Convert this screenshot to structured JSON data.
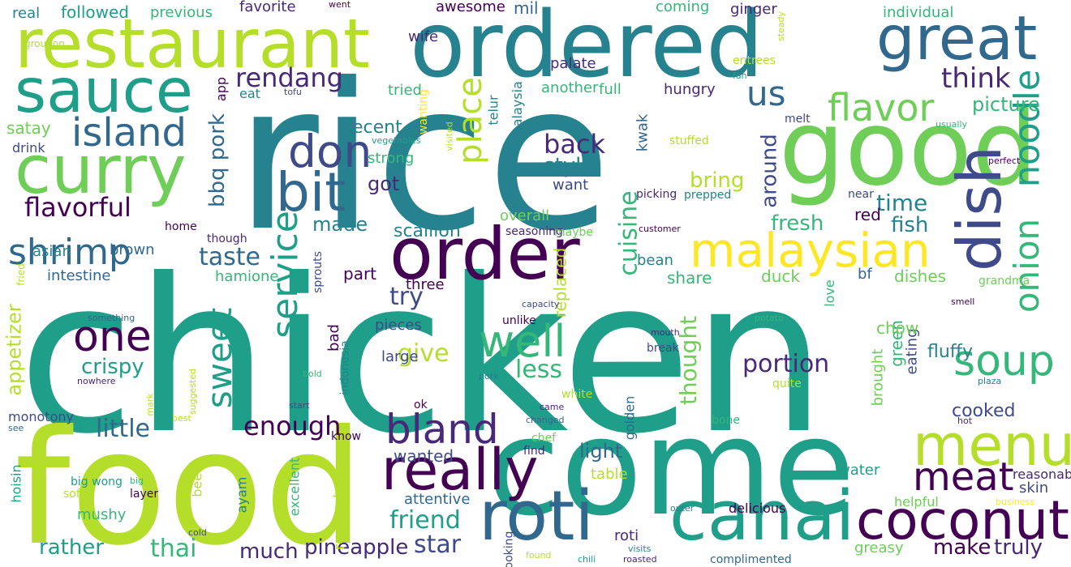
{
  "colors": {
    "background": "#ffffff",
    "palette": [
      "#440154",
      "#482878",
      "#3e4a89",
      "#31688e",
      "#26828e",
      "#1f9e89",
      "#35b779",
      "#6ece58",
      "#b5de2b",
      "#fde725"
    ]
  },
  "words": [
    {
      "text": "chicken",
      "color": "#1f9e89"
    },
    {
      "text": "rice",
      "color": "#26828e"
    },
    {
      "text": "food",
      "color": "#b5de2b"
    },
    {
      "text": "come",
      "color": "#1f9e89"
    },
    {
      "text": "ordered",
      "color": "#26828e"
    },
    {
      "text": "good",
      "color": "#6ece58"
    },
    {
      "text": "restaurant",
      "color": "#b5de2b"
    },
    {
      "text": "curry",
      "color": "#6ece58"
    },
    {
      "text": "sauce",
      "color": "#1f9e89"
    },
    {
      "text": "roti",
      "color": "#31688e"
    },
    {
      "text": "canai",
      "color": "#1f9e89"
    },
    {
      "text": "order",
      "color": "#440154"
    },
    {
      "text": "great",
      "color": "#31688e"
    },
    {
      "text": "dish",
      "color": "#3e4a89"
    },
    {
      "text": "malaysian",
      "color": "#fde725"
    },
    {
      "text": "really",
      "color": "#440154"
    },
    {
      "text": "menu",
      "color": "#b5de2b"
    },
    {
      "text": "coconut",
      "color": "#440154"
    },
    {
      "text": "bit",
      "color": "#31688e"
    },
    {
      "text": "island",
      "color": "#31688e"
    },
    {
      "text": "shrimp",
      "color": "#31688e"
    },
    {
      "text": "one",
      "color": "#440154"
    },
    {
      "text": "well",
      "color": "#35b779"
    },
    {
      "text": "soup",
      "color": "#35b779"
    },
    {
      "text": "noodle",
      "color": "#1f9e89"
    },
    {
      "text": "onion",
      "color": "#35b779"
    },
    {
      "text": "flavor",
      "color": "#6ece58"
    },
    {
      "text": "bland",
      "color": "#482878"
    },
    {
      "text": "meat",
      "color": "#440154"
    },
    {
      "text": "don",
      "color": "#3e4a89"
    },
    {
      "text": "place",
      "color": "#b5de2b"
    },
    {
      "text": "service",
      "color": "#1f9e89"
    },
    {
      "text": "sweet",
      "color": "#1f9e89"
    },
    {
      "text": "us",
      "color": "#31688e"
    },
    {
      "text": "think",
      "color": "#482878"
    },
    {
      "text": "rendang",
      "color": "#482878"
    },
    {
      "text": "back",
      "color": "#482878"
    },
    {
      "text": "style",
      "color": "#26828e"
    },
    {
      "text": "flavorful",
      "color": "#440154"
    },
    {
      "text": "bbq pork",
      "color": "#31688e"
    },
    {
      "text": "enough",
      "color": "#440154"
    },
    {
      "text": "little",
      "color": "#31688e"
    },
    {
      "text": "taste",
      "color": "#31688e"
    },
    {
      "text": "try",
      "color": "#3e4a89"
    },
    {
      "text": "give",
      "color": "#b5de2b"
    },
    {
      "text": "less",
      "color": "#35b779"
    },
    {
      "text": "portion",
      "color": "#482878"
    },
    {
      "text": "friend",
      "color": "#1f9e89"
    },
    {
      "text": "star",
      "color": "#3e4a89"
    },
    {
      "text": "thai",
      "color": "#35b779"
    },
    {
      "text": "rather",
      "color": "#1f9e89"
    },
    {
      "text": "much",
      "color": "#482878"
    },
    {
      "text": "pineapple",
      "color": "#482878"
    },
    {
      "text": "make",
      "color": "#440154"
    },
    {
      "text": "truly",
      "color": "#482878"
    },
    {
      "text": "crispy",
      "color": "#1f9e89"
    },
    {
      "text": "appetizer",
      "color": "#b5de2b"
    },
    {
      "text": "time",
      "color": "#26828e"
    },
    {
      "text": "fish",
      "color": "#26828e"
    },
    {
      "text": "fresh",
      "color": "#35b779"
    },
    {
      "text": "cuisine",
      "color": "#35b779"
    },
    {
      "text": "thought",
      "color": "#6ece58"
    },
    {
      "text": "around",
      "color": "#3e4a89"
    },
    {
      "text": "bring",
      "color": "#b5de2b"
    },
    {
      "text": "decent",
      "color": "#26828e"
    },
    {
      "text": "got",
      "color": "#482878"
    },
    {
      "text": "made",
      "color": "#26828e"
    },
    {
      "text": "scallion",
      "color": "#26828e"
    },
    {
      "text": "satay",
      "color": "#6ece58"
    },
    {
      "text": "drink",
      "color": "#3e4a89"
    },
    {
      "text": "asian",
      "color": "#26828e"
    },
    {
      "text": "brown",
      "color": "#31688e"
    },
    {
      "text": "intestine",
      "color": "#31688e"
    },
    {
      "text": "hamione",
      "color": "#35b779"
    },
    {
      "text": "part",
      "color": "#440154"
    },
    {
      "text": "three",
      "color": "#440154"
    },
    {
      "text": "pieces",
      "color": "#3e4a89"
    },
    {
      "text": "large",
      "color": "#3e4a89"
    },
    {
      "text": "light",
      "color": "#31688e"
    },
    {
      "text": "wanted",
      "color": "#3e4a89"
    },
    {
      "text": "attentive",
      "color": "#31688e"
    },
    {
      "text": "fluffy",
      "color": "#26828e"
    },
    {
      "text": "cooked",
      "color": "#3e4a89"
    },
    {
      "text": "green",
      "color": "#35b779"
    },
    {
      "text": "eating",
      "color": "#3e4a89"
    },
    {
      "text": "dishes",
      "color": "#6ece58"
    },
    {
      "text": "chow",
      "color": "#6ece58"
    },
    {
      "text": "red",
      "color": "#440154"
    },
    {
      "text": "share",
      "color": "#35b779"
    },
    {
      "text": "duck",
      "color": "#6ece58"
    },
    {
      "text": "bean",
      "color": "#26828e"
    },
    {
      "text": "bf",
      "color": "#31688e"
    },
    {
      "text": "water",
      "color": "#1f9e89"
    },
    {
      "text": "skin",
      "color": "#3e4a89"
    },
    {
      "text": "greasy",
      "color": "#6ece58"
    },
    {
      "text": "table",
      "color": "#b5de2b"
    },
    {
      "text": "roti",
      "color": "#482878"
    },
    {
      "text": "helpful",
      "color": "#6ece58"
    },
    {
      "text": "delicious",
      "color": "#440154"
    },
    {
      "text": "reasonable",
      "color": "#482878"
    },
    {
      "text": "overall",
      "color": "#6ece58"
    },
    {
      "text": "want",
      "color": "#3e4a89"
    },
    {
      "text": "strong",
      "color": "#35b779"
    },
    {
      "text": "kwak",
      "color": "#31688e"
    },
    {
      "text": "picking",
      "color": "#482878"
    },
    {
      "text": "telur",
      "color": "#26828e"
    },
    {
      "text": "malaysia",
      "color": "#26828e"
    },
    {
      "text": "another",
      "color": "#35b779"
    },
    {
      "text": "tried",
      "color": "#35b779"
    },
    {
      "text": "palate",
      "color": "#482878"
    },
    {
      "text": "wife",
      "color": "#482878"
    },
    {
      "text": "mil",
      "color": "#31688e"
    },
    {
      "text": "awesome",
      "color": "#440154"
    },
    {
      "text": "coming",
      "color": "#35b779"
    },
    {
      "text": "ginger",
      "color": "#482878"
    },
    {
      "text": "individual",
      "color": "#35b779"
    },
    {
      "text": "picture",
      "color": "#35b779"
    },
    {
      "text": "full",
      "color": "#35b779"
    },
    {
      "text": "hungry",
      "color": "#482878"
    },
    {
      "text": "favorite",
      "color": "#482878"
    },
    {
      "text": "previous",
      "color": "#35b779"
    },
    {
      "text": "followed",
      "color": "#1f9e89"
    },
    {
      "text": "real",
      "color": "#26828e"
    },
    {
      "text": "went",
      "color": "#440154"
    },
    {
      "text": "groupon",
      "color": "#b5de2b"
    },
    {
      "text": "app",
      "color": "#440154"
    },
    {
      "text": "eat",
      "color": "#26828e"
    },
    {
      "text": "tofu",
      "color": "#3e4a89"
    },
    {
      "text": "wanting",
      "color": "#fde725"
    },
    {
      "text": "vegetables",
      "color": "#1f9e89"
    },
    {
      "text": "visited",
      "color": "#b5de2b"
    },
    {
      "text": "entrees",
      "color": "#b5de2b"
    },
    {
      "text": "fan",
      "color": "#1f9e89"
    },
    {
      "text": "steady",
      "color": "#b5de2b"
    },
    {
      "text": "melt",
      "color": "#3e4a89"
    },
    {
      "text": "usually",
      "color": "#35b779"
    },
    {
      "text": "stuffed",
      "color": "#b5de2b"
    },
    {
      "text": "perfect",
      "color": "#440154"
    },
    {
      "text": "near",
      "color": "#3e4a89"
    },
    {
      "text": "prepped",
      "color": "#26828e"
    },
    {
      "text": "home",
      "color": "#440154"
    },
    {
      "text": "though",
      "color": "#482878"
    },
    {
      "text": "seasoning",
      "color": "#482878"
    },
    {
      "text": "maybe",
      "color": "#6ece58"
    },
    {
      "text": "customer",
      "color": "#440154"
    },
    {
      "text": "replaced",
      "color": "#b5de2b"
    },
    {
      "text": "sprouts",
      "color": "#3e4a89"
    },
    {
      "text": "fried",
      "color": "#b5de2b"
    },
    {
      "text": "something",
      "color": "#31688e"
    },
    {
      "text": "nowhere",
      "color": "#482878"
    },
    {
      "text": "suggested",
      "color": "#b5de2b"
    },
    {
      "text": "capacity",
      "color": "#3e4a89"
    },
    {
      "text": "unlike",
      "color": "#440154"
    },
    {
      "text": "potato",
      "color": "#35b779"
    },
    {
      "text": "mouth",
      "color": "#482878"
    },
    {
      "text": "break",
      "color": "#3e4a89"
    },
    {
      "text": "love",
      "color": "#35b779"
    },
    {
      "text": "brought",
      "color": "#6ece58"
    },
    {
      "text": "grandma",
      "color": "#6ece58"
    },
    {
      "text": "smell",
      "color": "#440154"
    },
    {
      "text": "plaza",
      "color": "#26828e"
    },
    {
      "text": "quite",
      "color": "#b5de2b"
    },
    {
      "text": "bad",
      "color": "#440154"
    },
    {
      "text": "indonesia",
      "color": "#26828e"
    },
    {
      "text": "bold",
      "color": "#35b779"
    },
    {
      "text": "mark",
      "color": "#b5de2b"
    },
    {
      "text": "best",
      "color": "#b5de2b"
    },
    {
      "text": "pork",
      "color": "#26828e"
    },
    {
      "text": "start",
      "color": "#3e4a89"
    },
    {
      "text": "ok",
      "color": "#440154"
    },
    {
      "text": "white",
      "color": "#b5de2b"
    },
    {
      "text": "came",
      "color": "#482878"
    },
    {
      "text": "changed",
      "color": "#31688e"
    },
    {
      "text": "golden",
      "color": "#31688e"
    },
    {
      "text": "bone",
      "color": "#35b779"
    },
    {
      "text": "hot",
      "color": "#482878"
    },
    {
      "text": "monotony",
      "color": "#3e4a89"
    },
    {
      "text": "see",
      "color": "#31688e"
    },
    {
      "text": "hoisin",
      "color": "#1f9e89"
    },
    {
      "text": "big wong",
      "color": "#1f9e89"
    },
    {
      "text": "soft",
      "color": "#b5de2b"
    },
    {
      "text": "mushy",
      "color": "#35b779"
    },
    {
      "text": "big",
      "color": "#35b779"
    },
    {
      "text": "layer",
      "color": "#440154"
    },
    {
      "text": "ayam",
      "color": "#26828e"
    },
    {
      "text": "beef",
      "color": "#b5de2b"
    },
    {
      "text": "excellent",
      "color": "#35b779"
    },
    {
      "text": "remember",
      "color": "#b5de2b"
    },
    {
      "text": "know",
      "color": "#440154"
    },
    {
      "text": "chef",
      "color": "#6ece58"
    },
    {
      "text": "find",
      "color": "#482878"
    },
    {
      "text": "cold",
      "color": "#3e4a89"
    },
    {
      "text": "outer",
      "color": "#26828e"
    },
    {
      "text": "business",
      "color": "#fde725"
    },
    {
      "text": "looking",
      "color": "#3e4a89"
    },
    {
      "text": "found",
      "color": "#b5de2b"
    },
    {
      "text": "chili",
      "color": "#1f9e89"
    },
    {
      "text": "visits",
      "color": "#26828e"
    },
    {
      "text": "roasted",
      "color": "#482878"
    },
    {
      "text": "complimented",
      "color": "#31688e"
    },
    {
      "text": "selection",
      "color": "#b5de2b"
    }
  ]
}
